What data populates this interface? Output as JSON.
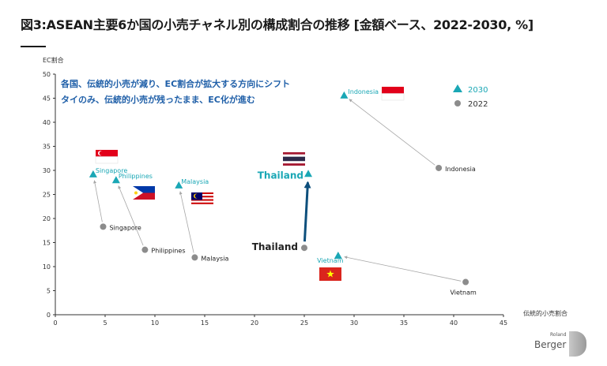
{
  "title": "図3:ASEAN主要6か国の小売チャネル別の構成割合の推移 [金額ベース、2022-2030, %]",
  "colors": {
    "teal": "#1aa7b5",
    "gray": "#8c8c8c",
    "navy": "#0d4f7c",
    "arrow_gray": "#a6a6a6",
    "text_blue": "#1f5fa8"
  },
  "chart_data": {
    "type": "scatter",
    "xlabel": "伝統的小売割合",
    "ylabel": "EC割合",
    "xlim": [
      0,
      45
    ],
    "ylim": [
      0,
      50
    ],
    "xticks": [
      0,
      5,
      10,
      15,
      20,
      25,
      30,
      35,
      40,
      45
    ],
    "yticks": [
      0,
      5,
      10,
      15,
      20,
      25,
      30,
      35,
      40,
      45,
      50
    ],
    "annotation_lines": [
      "各国、伝統的小売が減り、EC割合が拡大する方向にシフト",
      "タイのみ、伝統的小売が残ったまま、EC化が進む"
    ],
    "legend": {
      "position": "top-right",
      "entries": [
        "2030",
        "2022"
      ]
    },
    "series": [
      {
        "name": "2022",
        "marker": "circle",
        "color": "#8c8c8c",
        "points": [
          {
            "label": "Indonesia",
            "x": 38.5,
            "y": 30.5
          },
          {
            "label": "Singapore",
            "x": 4.8,
            "y": 18.3
          },
          {
            "label": "Philippines",
            "x": 9.0,
            "y": 13.5
          },
          {
            "label": "Malaysia",
            "x": 14.0,
            "y": 11.9
          },
          {
            "label": "Thailand",
            "x": 25.0,
            "y": 13.9
          },
          {
            "label": "Vietnam",
            "x": 41.2,
            "y": 6.8
          }
        ]
      },
      {
        "name": "2030",
        "marker": "triangle",
        "color": "#1aa7b5",
        "points": [
          {
            "label": "Indonesia",
            "x": 29.0,
            "y": 45.6
          },
          {
            "label": "Singapore",
            "x": 3.8,
            "y": 29.2
          },
          {
            "label": "Philippines",
            "x": 6.1,
            "y": 28.0
          },
          {
            "label": "Malaysia",
            "x": 12.4,
            "y": 26.9
          },
          {
            "label": "Thailand",
            "x": 25.4,
            "y": 29.3
          },
          {
            "label": "Vietnam",
            "x": 28.4,
            "y": 12.3
          }
        ]
      }
    ]
  },
  "logo": {
    "small": "Roland",
    "big": "Berger"
  }
}
